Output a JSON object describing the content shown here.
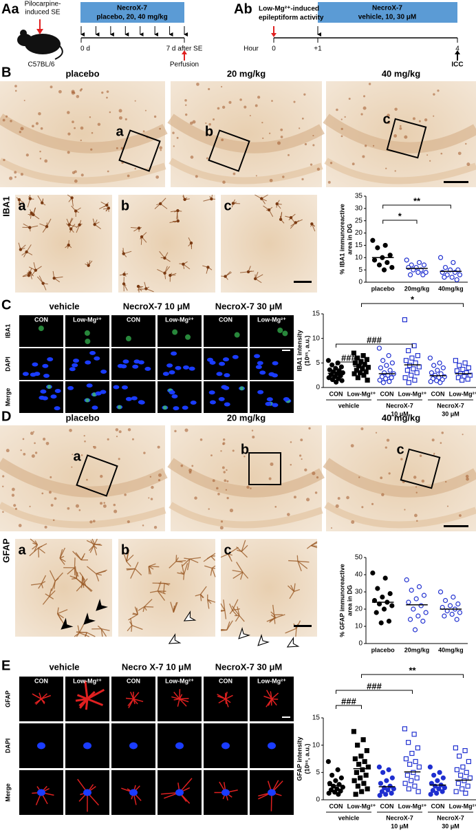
{
  "panel_aa": {
    "label": "Aa",
    "induction": [
      "Pilocarpine-",
      "induced SE"
    ],
    "strain": "C57BL/6",
    "treatment": [
      "NecroX-7",
      "placebo, 20, 40 mg/kg"
    ],
    "day_start": "0 d",
    "day_end": "7 d after SE",
    "endpoint": "Perfusion"
  },
  "panel_ab": {
    "label": "Ab",
    "induction": [
      "Low-Mg²⁺-induced",
      "epileptiform activity"
    ],
    "treatment": [
      "NecroX-7",
      "vehicle, 10, 30 μM"
    ],
    "axis_name": "Hour",
    "hours": [
      "0",
      "+1",
      "4"
    ],
    "endpoint": "ICC"
  },
  "panel_b": {
    "label": "B",
    "stain": "IBA1",
    "columns": [
      "placebo",
      "20 mg/kg",
      "40 mg/kg"
    ],
    "insets": [
      "a",
      "b",
      "c"
    ],
    "chart": {
      "type": "scatter",
      "y_label": [
        "% IBA1 immunoreactive",
        "area in DG"
      ],
      "categories": [
        "placebo",
        "20mg/kg",
        "40mg/kg"
      ],
      "ylim": [
        0,
        35
      ],
      "yticks": [
        0,
        5,
        10,
        15,
        20,
        25,
        30,
        35
      ],
      "groups": [
        {
          "values": [
            17,
            15,
            14,
            11,
            10,
            9,
            8,
            7,
            6,
            5
          ],
          "mean": 10,
          "color": "#000000",
          "marker": "circle",
          "filled": true
        },
        {
          "values": [
            9,
            8,
            7,
            7,
            6,
            6,
            5,
            5,
            4,
            4,
            3,
            3
          ],
          "mean": 5.6,
          "color": "#1f2fd0",
          "marker": "circle",
          "filled": false
        },
        {
          "values": [
            10,
            8,
            6,
            5,
            5,
            4,
            4,
            3,
            3,
            2,
            2,
            1
          ],
          "mean": 4.4,
          "color": "#1f2fd0",
          "marker": "circle",
          "filled": false
        }
      ],
      "comparisons": [
        {
          "from": 0,
          "to": 1,
          "label": "*"
        },
        {
          "from": 0,
          "to": 2,
          "label": "**"
        }
      ]
    }
  },
  "panel_c": {
    "label": "C",
    "columns": [
      "vehicle",
      "NecroX-7 10 μM",
      "NecroX-7 30 μM"
    ],
    "conditions": [
      "CON",
      "Low-Mg²⁺"
    ],
    "rows": [
      "IBA1",
      "DAPI",
      "Merge"
    ],
    "chart": {
      "type": "scatter",
      "y_label": [
        "IBA1 intensity",
        "(10ˣ⁵, a.u.)"
      ],
      "categories": [
        "CON",
        "Low-Mg²⁺",
        "CON",
        "Low-Mg²⁺",
        "CON",
        "Low-Mg²⁺"
      ],
      "group_labels": [
        [
          "vehicle"
        ],
        [
          "NecroX-7",
          "10 μM"
        ],
        [
          "NecroX-7",
          "30 μM"
        ]
      ],
      "ylim": [
        0,
        15
      ],
      "yticks": [
        0,
        5,
        10,
        15
      ],
      "groups": [
        {
          "values": [
            5.5,
            5,
            4.6,
            4.2,
            3.9,
            3.6,
            3.4,
            3.2,
            3,
            2.8,
            2.6,
            2.4,
            2.2,
            2,
            1.8,
            1.6,
            1.4,
            1.1
          ],
          "mean": 2.9,
          "color": "#000000",
          "marker": "circle",
          "filled": true
        },
        {
          "values": [
            7,
            6.5,
            6,
            5.7,
            5.3,
            5,
            4.7,
            4.4,
            4.1,
            3.8,
            3.5,
            3.2,
            3,
            2.8,
            2.5,
            2,
            1.5
          ],
          "mean": 4.3,
          "color": "#000000",
          "marker": "square",
          "filled": true
        },
        {
          "values": [
            8,
            6.5,
            5.5,
            5,
            4.5,
            4,
            3.5,
            3,
            2.8,
            2.5,
            2.2,
            2,
            1.8,
            1.5,
            1.2,
            1
          ],
          "mean": 2.8,
          "color": "#1f2fd0",
          "marker": "circle",
          "filled": false
        },
        {
          "values": [
            13.8,
            8.5,
            7.5,
            6.5,
            6,
            5.5,
            5,
            4.5,
            4.2,
            3.8,
            3.5,
            3,
            2.5,
            2,
            1.5,
            1
          ],
          "mean": 4.6,
          "color": "#1f2fd0",
          "marker": "square",
          "filled": false
        },
        {
          "values": [
            6,
            5,
            4.5,
            4,
            3.5,
            3,
            2.8,
            2.5,
            2.2,
            2,
            1.8,
            1.6,
            1.4,
            1.2,
            1
          ],
          "mean": 2.4,
          "color": "#1f2fd0",
          "marker": "circle",
          "filled": false
        },
        {
          "values": [
            5.5,
            5,
            4.5,
            4,
            3.7,
            3.4,
            3,
            2.8,
            2.5,
            2.2,
            2,
            1.7,
            1.5
          ],
          "mean": 2.8,
          "color": "#1f2fd0",
          "marker": "square",
          "filled": false
        }
      ],
      "comparisons": [
        {
          "from": 0,
          "to": 1,
          "label": "###"
        },
        {
          "from": 0,
          "to": 3,
          "label": "###"
        },
        {
          "from": 1,
          "to": 5,
          "label": "*"
        }
      ]
    }
  },
  "panel_d": {
    "label": "D",
    "stain": "GFAP",
    "columns": [
      "placebo",
      "20 mg/kg",
      "40 mg/kg"
    ],
    "insets": [
      "a",
      "b",
      "c"
    ],
    "chart": {
      "type": "scatter",
      "y_label": [
        "% GFAP immunoreactive",
        "area in DG"
      ],
      "categories": [
        "placebo",
        "20mg/kg",
        "40mg/kg"
      ],
      "ylim": [
        0,
        50
      ],
      "yticks": [
        0,
        10,
        20,
        30,
        40,
        50
      ],
      "groups": [
        {
          "values": [
            41,
            38,
            32,
            29,
            27,
            25,
            24,
            23,
            22,
            20,
            18,
            13,
            12
          ],
          "mean": 24,
          "color": "#000000",
          "marker": "circle",
          "filled": true
        },
        {
          "values": [
            37,
            33,
            31,
            28,
            26,
            24,
            22,
            20,
            18,
            16,
            14,
            13,
            8
          ],
          "mean": 22.5,
          "color": "#1f2fd0",
          "marker": "circle",
          "filled": false
        },
        {
          "values": [
            30,
            27,
            25,
            23,
            22,
            21,
            20,
            19,
            18,
            17,
            16,
            14
          ],
          "mean": 20,
          "color": "#1f2fd0",
          "marker": "circle",
          "filled": false
        }
      ],
      "comparisons": []
    }
  },
  "panel_e": {
    "label": "E",
    "columns": [
      "vehicle",
      "Necro X-7 10 μM",
      "NecroX-7 30 μM"
    ],
    "conditions": [
      "CON",
      "Low-Mg²⁺"
    ],
    "rows": [
      "GFAP",
      "DAPI",
      "Merge"
    ],
    "chart": {
      "type": "scatter",
      "y_label": [
        "GFAP intensity",
        "(10ˣ⁶, a.u.)"
      ],
      "categories": [
        "CON",
        "Low-Mg²⁺",
        "CON",
        "Low-Mg²⁺",
        "CON",
        "Low-Mg²⁺"
      ],
      "group_labels": [
        [
          "vehicle"
        ],
        [
          "NecroX-7",
          "10 μM"
        ],
        [
          "NecroX-7",
          "30 μM"
        ]
      ],
      "ylim": [
        0,
        15
      ],
      "yticks": [
        0,
        5,
        10,
        15
      ],
      "groups": [
        {
          "values": [
            7,
            5.5,
            4.5,
            4,
            3.5,
            3,
            2.8,
            2.5,
            2.3,
            2,
            1.8,
            1.6,
            1.4,
            1.2,
            1
          ],
          "mean": 2.6,
          "color": "#000000",
          "marker": "circle",
          "filled": true
        },
        {
          "values": [
            12.5,
            11,
            10,
            9,
            8,
            7.5,
            7,
            6.5,
            6,
            5.5,
            5,
            4.5,
            4,
            3.5,
            3,
            2.5,
            2,
            1.5,
            1
          ],
          "mean": 5.7,
          "color": "#000000",
          "marker": "square",
          "filled": true
        },
        {
          "values": [
            6,
            5.5,
            5,
            4,
            3.5,
            3,
            2.5,
            2.2,
            2,
            1.8,
            1.5,
            1.2,
            1,
            0.8
          ],
          "mean": 2.4,
          "color": "#1f2fd0",
          "marker": "circle",
          "filled": true
        },
        {
          "values": [
            13,
            12,
            10.5,
            9.5,
            8.5,
            7.5,
            7,
            6.5,
            6,
            5,
            4.5,
            4,
            3.5,
            3,
            2.5,
            2,
            1.5
          ],
          "mean": 5.1,
          "color": "#1f2fd0",
          "marker": "square",
          "filled": false
        },
        {
          "values": [
            6,
            5,
            4.5,
            4,
            3.5,
            3,
            2.7,
            2.5,
            2.2,
            2,
            1.7,
            1.5,
            1.2,
            1
          ],
          "mean": 2.7,
          "color": "#1f2fd0",
          "marker": "circle",
          "filled": true
        },
        {
          "values": [
            9.5,
            9,
            8,
            7,
            6,
            5.5,
            5,
            4.5,
            4,
            3.5,
            3,
            2.5,
            2,
            1.5,
            1.2
          ],
          "mean": 3.6,
          "color": "#1f2fd0",
          "marker": "square",
          "filled": false
        }
      ],
      "comparisons": [
        {
          "from": 0,
          "to": 1,
          "label": "###"
        },
        {
          "from": 0,
          "to": 3,
          "label": "###"
        },
        {
          "from": 1,
          "to": 5,
          "label": "**"
        }
      ]
    }
  }
}
